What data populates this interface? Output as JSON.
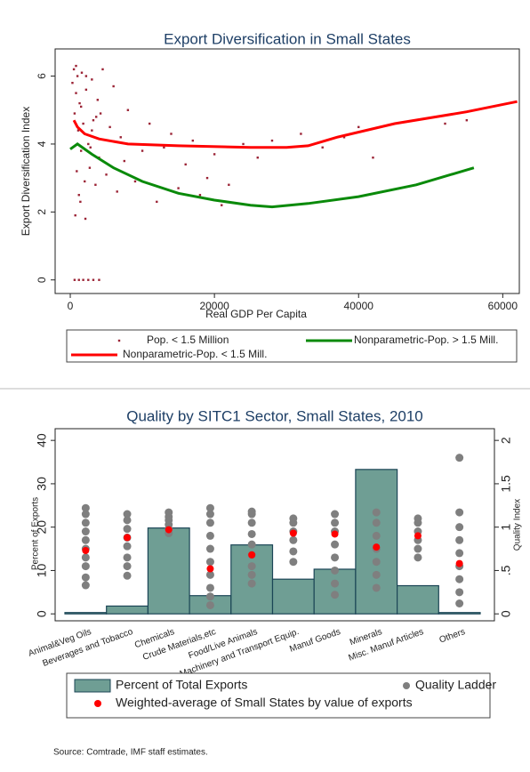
{
  "chart_data": [
    {
      "type": "scatter",
      "title": "Export Diversification in Small States",
      "x_label": "Real GDP Per Capita",
      "y_label": "Export Diversification Index",
      "xlim": [
        -2100,
        62300
      ],
      "ylim": [
        -0.4,
        6.8
      ],
      "xticks": [
        0,
        20000,
        40000,
        60000
      ],
      "yticks": [
        0,
        2,
        4,
        6
      ],
      "series": [
        {
          "name": "Pop. < 1.5 Million",
          "color": "#9b2335",
          "mark": "point",
          "x": [
            300,
            500,
            600,
            800,
            900,
            1000,
            1100,
            1200,
            1300,
            1500,
            1600,
            1800,
            2000,
            2200,
            2500,
            2700,
            3000,
            3200,
            3500,
            3800,
            4000,
            4200,
            4500,
            5000,
            5500,
            6000,
            6500,
            7000,
            7500,
            8000,
            9000,
            10000,
            11000,
            12000,
            13000,
            14000,
            15000,
            16000,
            17000,
            18000,
            19000,
            20000,
            21000,
            22000,
            24000,
            26000,
            28000,
            30000,
            32000,
            35000,
            38000,
            40000,
            42000,
            52000,
            55000,
            600,
            1200,
            1800,
            2500,
            3200,
            4000,
            800,
            1500,
            2200,
            3000,
            700,
            1400,
            2100,
            2800,
            3600
          ],
          "values": [
            5.8,
            6.2,
            4.9,
            5.5,
            3.2,
            6.0,
            4.4,
            2.5,
            5.2,
            3.8,
            6.1,
            4.6,
            2.9,
            5.6,
            4.0,
            3.3,
            5.9,
            4.7,
            2.8,
            5.3,
            3.6,
            4.9,
            6.2,
            3.1,
            4.5,
            5.7,
            2.6,
            4.2,
            3.5,
            5.0,
            2.9,
            3.8,
            4.6,
            2.3,
            3.9,
            4.3,
            2.7,
            3.4,
            4.1,
            2.5,
            3.0,
            3.7,
            2.2,
            2.8,
            4.0,
            3.6,
            4.1,
            3.9,
            4.3,
            3.9,
            4.2,
            4.5,
            3.6,
            4.6,
            4.7,
            0,
            0,
            0,
            0,
            0,
            0,
            6.3,
            5.1,
            6.0,
            4.4,
            1.9,
            2.3,
            1.8,
            3.9,
            4.8
          ]
        },
        {
          "name": "Nonparametric-Pop. > 1.5 Mill.",
          "color": "#0a8a0a",
          "mark": "line",
          "x": [
            0,
            1000,
            3000,
            6000,
            10000,
            15000,
            20000,
            25000,
            28000,
            33000,
            40000,
            48000,
            56000
          ],
          "values": [
            3.85,
            4.0,
            3.7,
            3.3,
            2.9,
            2.55,
            2.35,
            2.2,
            2.15,
            2.25,
            2.45,
            2.8,
            3.3
          ]
        },
        {
          "name": "Nonparametric-Pop. < 1.5 Mill.",
          "color": "#ff0000",
          "mark": "line",
          "x": [
            500,
            1000,
            2000,
            4000,
            8000,
            15000,
            25000,
            30000,
            33000,
            37000,
            45000,
            55000,
            62000
          ],
          "values": [
            4.7,
            4.5,
            4.3,
            4.15,
            4.0,
            3.95,
            3.9,
            3.9,
            3.95,
            4.2,
            4.6,
            4.95,
            5.25
          ]
        }
      ]
    },
    {
      "type": "bar",
      "title": "Quality by SITC1 Sector, Small States, 2010",
      "y_label": "Percent of Exports",
      "y2_label": "Quality Index",
      "categories": [
        "Animal&Veg Oils",
        "Beverages and Tobacco",
        "Chemicals",
        "Crude Materials,etc",
        "Food/Live Animals",
        "Machinery and Transport Equip.",
        "Manuf Goods",
        "Minerals",
        "Misc. Manuf Articles",
        "Others"
      ],
      "ylim": [
        -1.6,
        42.7
      ],
      "yticks": [
        0,
        10,
        20,
        30,
        40
      ],
      "y2lim": [
        -0.08,
        2.135
      ],
      "y2ticks": [
        0,
        {
          "value": 0.5,
          "label": ".5"
        },
        1,
        1.5,
        2
      ],
      "series": [
        {
          "name": "Percent of Total Exports",
          "color": "#6f9e94",
          "mark": "bar",
          "values": [
            0.3,
            1.8,
            19.8,
            4.2,
            15.9,
            8.0,
            10.3,
            33.3,
            6.5,
            0.3
          ]
        },
        {
          "name": "Quality Ladder",
          "color": "#7f7f7f",
          "mark": "strip",
          "axis": "y2",
          "values": [
            [
              0.33,
              0.42,
              0.55,
              0.65,
              0.75,
              0.85,
              0.95,
              1.05,
              1.15,
              1.22
            ],
            [
              0.44,
              0.55,
              0.65,
              0.78,
              0.88,
              0.98,
              1.08,
              1.15
            ],
            [
              0.93,
              0.98,
              1.03,
              1.08,
              1.12,
              1.17
            ],
            [
              0.1,
              0.2,
              0.3,
              0.45,
              0.6,
              0.75,
              0.9,
              1.05,
              1.15,
              1.22
            ],
            [
              0.35,
              0.45,
              0.55,
              0.68,
              0.8,
              0.92,
              1.05,
              1.15,
              1.18
            ],
            [
              0.6,
              0.72,
              0.85,
              0.95,
              1.05,
              1.1
            ],
            [
              0.22,
              0.35,
              0.5,
              0.65,
              0.8,
              0.95,
              1.05,
              1.15
            ],
            [
              0.3,
              0.45,
              0.6,
              0.75,
              0.9,
              1.05,
              1.17
            ],
            [
              0.65,
              0.75,
              0.85,
              0.95,
              1.05,
              1.1
            ],
            [
              0.12,
              0.25,
              0.4,
              0.55,
              0.7,
              0.85,
              1.0,
              1.17,
              1.8
            ]
          ]
        },
        {
          "name": "Weighted-average of Small States by value of exports",
          "color": "#ff0000",
          "mark": "point",
          "axis": "y2",
          "values": [
            0.73,
            0.88,
            0.97,
            0.52,
            0.68,
            0.93,
            0.92,
            0.77,
            0.9,
            0.58
          ]
        }
      ]
    }
  ],
  "source": "Source: Comtrade, IMF staff estimates."
}
